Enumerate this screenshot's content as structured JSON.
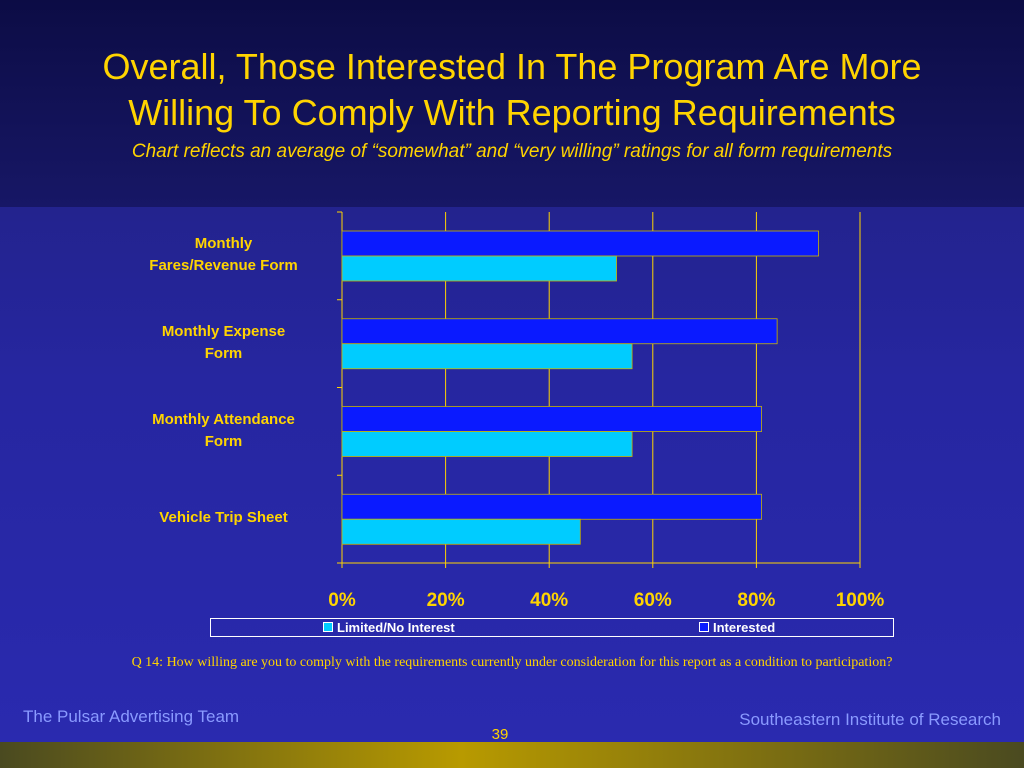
{
  "slide": {
    "title_line1": "Overall, Those Interested In The Program Are More",
    "title_line2": "Willing To Comply With Reporting Requirements",
    "subtitle": "Chart reflects an average of “somewhat” and “very willing” ratings for all form requirements",
    "question": "Q 14:  How willing are you to comply with the requirements currently under consideration for this report as a condition to participation?",
    "footer_left": "The Pulsar Advertising Team",
    "footer_right": "Southeastern Institute of Research",
    "page_number": "39"
  },
  "chart_data": {
    "type": "bar",
    "orientation": "horizontal",
    "categories": [
      {
        "line1": "Monthly",
        "line2": "Fares/Revenue Form"
      },
      {
        "line1": "Monthly Expense",
        "line2": "Form"
      },
      {
        "line1": "Monthly Attendance",
        "line2": "Form"
      },
      {
        "line1": "Vehicle Trip Sheet",
        "line2": ""
      }
    ],
    "series": [
      {
        "name": "Interested",
        "color": "#0a1aff",
        "values": [
          92,
          84,
          81,
          81
        ]
      },
      {
        "name": "Limited/No Interest",
        "color": "#00ccff",
        "values": [
          53,
          56,
          56,
          46
        ]
      }
    ],
    "legend_order": [
      "Limited/No Interest",
      "Interested"
    ],
    "xlim": [
      0,
      100
    ],
    "xticks": [
      "0%",
      "20%",
      "40%",
      "60%",
      "80%",
      "100%"
    ],
    "grid": true,
    "legend_position": "bottom",
    "gridline_color": "#ffd400",
    "label_color": "#ffd400"
  }
}
